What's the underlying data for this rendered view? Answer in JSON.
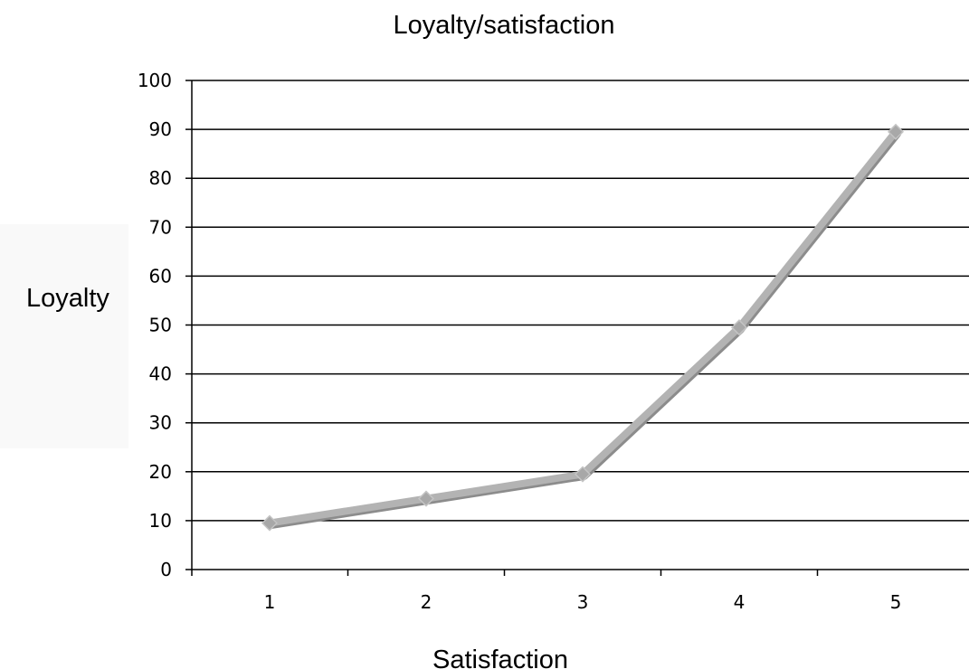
{
  "chart_data": {
    "type": "line",
    "title": "Loyalty/satisfaction",
    "xlabel": "Satisfaction",
    "ylabel": "Loyalty",
    "x": [
      1,
      2,
      3,
      4,
      5
    ],
    "series": [
      {
        "values": [
          9.5,
          14.5,
          19.5,
          49.5,
          89.5
        ],
        "color": "#b3b3b3"
      }
    ],
    "ylim": [
      0,
      100
    ],
    "y_ticks": [
      0,
      10,
      20,
      30,
      40,
      50,
      60,
      70,
      80,
      90,
      100
    ],
    "grid": true,
    "marker": "diamond"
  }
}
